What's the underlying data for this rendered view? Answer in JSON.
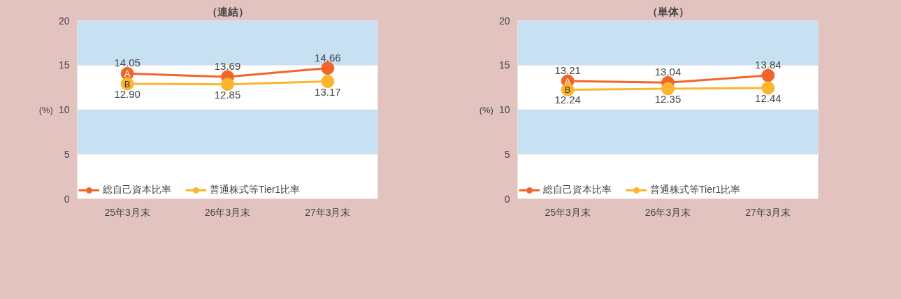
{
  "chart_data": [
    {
      "type": "line",
      "title": "（連結）",
      "ylabel": "(%)",
      "categories": [
        "25年3月末",
        "26年3月末",
        "27年3月末"
      ],
      "ylim": [
        0,
        20
      ],
      "yticks": [
        0,
        5,
        10,
        15,
        20
      ],
      "grid": false,
      "legend": "bottom left",
      "marker": "circle",
      "line_style": "solid",
      "bands": [
        {
          "axis": "y",
          "from": 5,
          "to": 10,
          "color": "#c7e1f3"
        },
        {
          "axis": "y",
          "from": 15,
          "to": 20,
          "color": "#c7e1f3"
        }
      ],
      "annotations": [
        {
          "text": "A",
          "x": "25年3月末",
          "y": 14.05
        },
        {
          "text": "B",
          "x": "25年3月末",
          "y": 12.9
        }
      ],
      "series": [
        {
          "name": "総自己資本比率",
          "color": "#f26529",
          "values": [
            14.05,
            13.69,
            14.66
          ],
          "value_labels": [
            "14.05",
            "13.69",
            "14.66"
          ]
        },
        {
          "name": "普通株式等Tier1比率",
          "color": "#fbb52f",
          "values": [
            12.9,
            12.85,
            13.17
          ],
          "value_labels": [
            "12.90",
            "12.85",
            "13.17"
          ]
        }
      ]
    },
    {
      "type": "line",
      "title": "（単体）",
      "ylabel": "(%)",
      "categories": [
        "25年3月末",
        "26年3月末",
        "27年3月末"
      ],
      "ylim": [
        0,
        20
      ],
      "yticks": [
        0,
        5,
        10,
        15,
        20
      ],
      "grid": false,
      "legend": "bottom left",
      "marker": "circle",
      "line_style": "solid",
      "bands": [
        {
          "axis": "y",
          "from": 5,
          "to": 10,
          "color": "#c7e1f3"
        },
        {
          "axis": "y",
          "from": 15,
          "to": 20,
          "color": "#c7e1f3"
        }
      ],
      "annotations": [
        {
          "text": "A",
          "x": "25年3月末",
          "y": 13.21
        },
        {
          "text": "B",
          "x": "25年3月末",
          "y": 12.24
        }
      ],
      "series": [
        {
          "name": "総自己資本比率",
          "color": "#f26529",
          "values": [
            13.21,
            13.04,
            13.84
          ],
          "value_labels": [
            "13.21",
            "13.04",
            "13.84"
          ]
        },
        {
          "name": "普通株式等Tier1比率",
          "color": "#fbb52f",
          "values": [
            12.24,
            12.35,
            12.44
          ],
          "value_labels": [
            "12.24",
            "12.35",
            "12.44"
          ]
        }
      ]
    }
  ]
}
